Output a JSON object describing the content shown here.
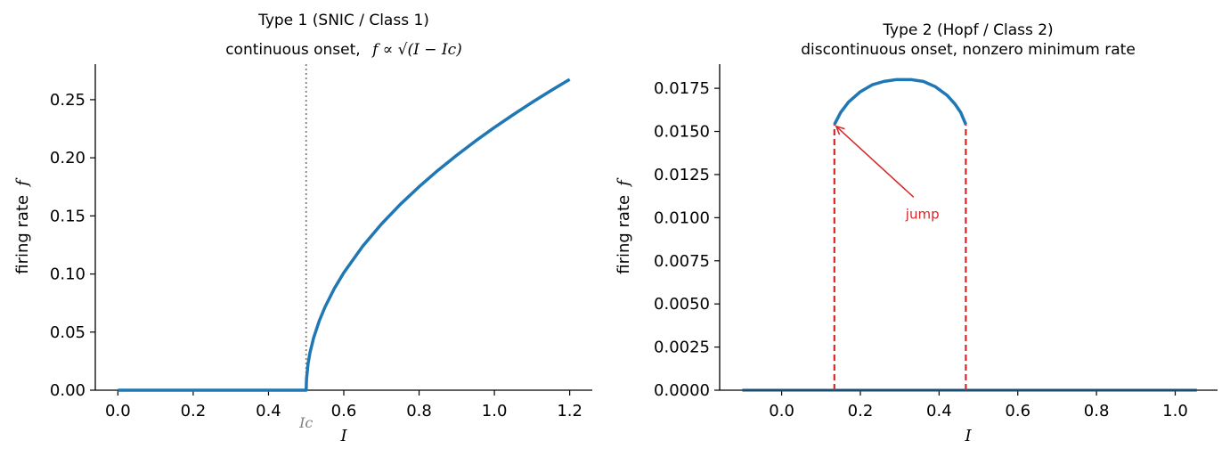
{
  "colors": {
    "curve": "#1f77b4",
    "jump": "#d62728",
    "ic_marker": "#808080",
    "axes": "#000000",
    "baseline_right": "#1a4d6e"
  },
  "chart_data": [
    {
      "type": "line",
      "title_line1": "Type 1 (SNIC / Class 1)",
      "title_line2_text": "continuous onset,",
      "title_line2_formula": "f ∝ √(I − Ic)",
      "xlabel": "I",
      "ylabel_text": "firing rate",
      "ylabel_symbol": "f",
      "xlim": [
        -0.06,
        1.26
      ],
      "ylim": [
        0,
        0.2806
      ],
      "xticks": [
        0.0,
        0.2,
        0.4,
        0.6,
        0.8,
        1.0,
        1.2
      ],
      "xtick_labels": [
        "0.0",
        "0.2",
        "0.4",
        "0.6",
        "0.8",
        "1.0",
        "1.2"
      ],
      "yticks": [
        0.0,
        0.05,
        0.1,
        0.15,
        0.2,
        0.25
      ],
      "ytick_labels": [
        "0.00",
        "0.05",
        "0.10",
        "0.15",
        "0.20",
        "0.25"
      ],
      "ic_value": 0.5,
      "ic_label": "Ic",
      "series": [
        {
          "x": [
            0.0,
            0.5,
            0.501,
            0.505,
            0.51,
            0.52,
            0.535,
            0.55,
            0.575,
            0.6,
            0.65,
            0.7,
            0.75,
            0.8,
            0.85,
            0.9,
            0.95,
            1.0,
            1.05,
            1.1,
            1.15,
            1.2
          ],
          "y": [
            0.0,
            0.0,
            0.0095,
            0.0226,
            0.032,
            0.0452,
            0.0598,
            0.0715,
            0.0876,
            0.1011,
            0.1238,
            0.143,
            0.1599,
            0.1751,
            0.1892,
            0.2022,
            0.2145,
            0.2261,
            0.2371,
            0.2477,
            0.2578,
            0.2675
          ]
        }
      ]
    },
    {
      "type": "line",
      "title_line1": "Type 2 (Hopf / Class 2)",
      "title_line2": "discontinuous onset,  nonzero minimum rate",
      "xlabel": "I",
      "ylabel_text": "firing rate",
      "ylabel_symbol": "f",
      "xlim": [
        -0.1575,
        1.1075
      ],
      "ylim": [
        0,
        0.0189
      ],
      "xticks": [
        0.0,
        0.2,
        0.4,
        0.6,
        0.8,
        1.0
      ],
      "xtick_labels": [
        "0.0",
        "0.2",
        "0.4",
        "0.6",
        "0.8",
        "1.0"
      ],
      "yticks": [
        0.0,
        0.0025,
        0.005,
        0.0075,
        0.01,
        0.0125,
        0.015,
        0.0175
      ],
      "ytick_labels": [
        "0.0000",
        "0.0025",
        "0.0050",
        "0.0075",
        "0.0100",
        "0.0125",
        "0.0150",
        "0.0175"
      ],
      "jump_x": [
        0.134,
        0.468
      ],
      "jump_ymax": 0.0154,
      "annotation": {
        "text": "jump",
        "text_x": 0.315,
        "text_y": 0.01,
        "arrow_x": 0.134,
        "arrow_y": 0.0154
      },
      "series": [
        {
          "x": [
            0.134,
            0.15,
            0.17,
            0.2,
            0.23,
            0.26,
            0.29,
            0.31,
            0.33,
            0.36,
            0.39,
            0.42,
            0.44,
            0.455,
            0.468
          ],
          "y": [
            0.0154,
            0.0161,
            0.0167,
            0.0173,
            0.0177,
            0.0179,
            0.018,
            0.018,
            0.018,
            0.0179,
            0.0176,
            0.0171,
            0.0166,
            0.0161,
            0.0154
          ]
        },
        {
          "x": [
            -0.1,
            1.055
          ],
          "y": [
            0.0,
            0.0
          ]
        }
      ]
    }
  ]
}
